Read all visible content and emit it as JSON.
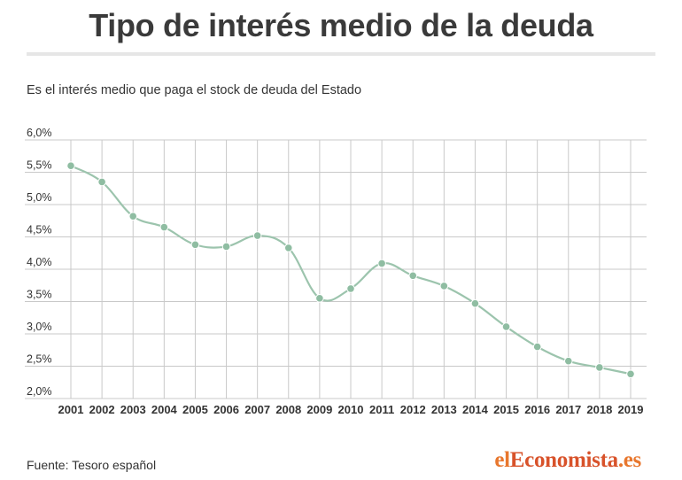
{
  "header": {
    "title": "Tipo de interés medio de la deuda",
    "subtitle": "Es el interés medio que paga el stock de deuda del Estado"
  },
  "footer": {
    "source": "Fuente: Tesoro español",
    "logo_prefix": "el",
    "logo_mid": "Economista",
    "logo_suffix": ".es"
  },
  "colors": {
    "line": "#9cc4ad",
    "marker": "#8fbda2",
    "grid": "#c9c9c9",
    "logo": "#e8772e"
  },
  "chart_data": {
    "type": "line",
    "title": "",
    "xlabel": "",
    "ylabel": "",
    "x": [
      "2001",
      "2002",
      "2003",
      "2004",
      "2005",
      "2006",
      "2007",
      "2008",
      "2009",
      "2010",
      "2011",
      "2012",
      "2013",
      "2014",
      "2015",
      "2016",
      "2017",
      "2018",
      "2019"
    ],
    "series": [
      {
        "values": [
          5.6,
          5.35,
          4.82,
          4.65,
          4.38,
          4.35,
          4.52,
          4.33,
          3.55,
          3.7,
          4.09,
          3.9,
          3.74,
          3.47,
          3.11,
          2.8,
          2.58,
          2.48,
          2.38
        ]
      }
    ],
    "yticks": [
      "6,0%",
      "5,5%",
      "5,0%",
      "4,5%",
      "4,0%",
      "3,5%",
      "3,0%",
      "2,5%",
      "2,0%"
    ],
    "ylim": [
      2.0,
      6.0
    ],
    "grid": true,
    "legend": "none"
  }
}
